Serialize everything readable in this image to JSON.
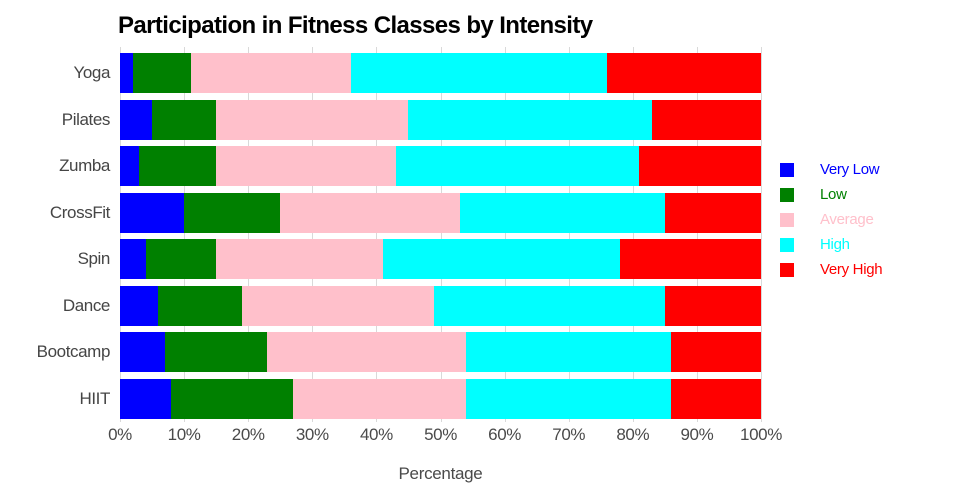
{
  "chart_data": {
    "type": "bar",
    "orientation": "horizontal",
    "stacked": true,
    "title": "Participation in Fitness Classes by Intensity",
    "xlabel": "Percentage",
    "ylabel": "",
    "categories": [
      "Yoga",
      "Pilates",
      "Zumba",
      "CrossFit",
      "Spin",
      "Dance",
      "Bootcamp",
      "HIIT"
    ],
    "series": [
      {
        "name": "Very Low",
        "color": "#0000ff",
        "values": [
          2,
          5,
          3,
          10,
          4,
          6,
          7,
          8
        ]
      },
      {
        "name": "Low",
        "color": "#008000",
        "values": [
          9,
          10,
          12,
          15,
          11,
          13,
          16,
          19
        ]
      },
      {
        "name": "Average",
        "color": "#ffc0cb",
        "values": [
          25,
          30,
          28,
          28,
          26,
          30,
          31,
          27
        ]
      },
      {
        "name": "High",
        "color": "#00ffff",
        "values": [
          40,
          38,
          38,
          32,
          37,
          36,
          32,
          32
        ]
      },
      {
        "name": "Very High",
        "color": "#ff0000",
        "values": [
          24,
          17,
          19,
          15,
          22,
          15,
          14,
          14
        ]
      }
    ],
    "x_ticks": [
      "0%",
      "10%",
      "20%",
      "30%",
      "40%",
      "50%",
      "60%",
      "70%",
      "80%",
      "90%",
      "100%"
    ],
    "xlim": [
      0,
      100
    ],
    "grid": true,
    "grid_color": "#d9d9d9",
    "background_color": "#ffffff",
    "axis_text_color": "#4a4a4a",
    "title_color": "#000000",
    "legend_position": "right",
    "legend_text_colored_to_match_swatch": true
  }
}
